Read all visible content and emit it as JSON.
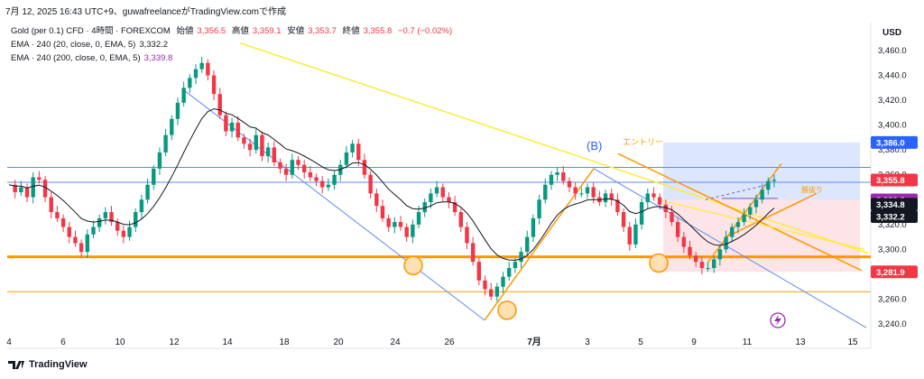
{
  "header": {
    "text": "7月 12, 2025 16:43 UTC+9、guwafreelanceがTradingView.comで作成"
  },
  "legend": {
    "symbol": "Gold (per 0.1) CFD · 4時間 · FOREXCOM",
    "o_label": "始値",
    "o": "3,356.5",
    "h_label": "高値",
    "h": "3,359.1",
    "l_label": "安値",
    "l": "3,353.7",
    "c_label": "終値",
    "c": "3,355.8",
    "chg": "−0.7 (−0.02%)",
    "ema1": "EMA · 240 (20, close, 0, EMA, 5)",
    "ema1_val": "3,332.2",
    "ema2": "EMA · 240 (200, close, 0, EMA, 5)",
    "ema2_val": "3,339.8"
  },
  "currency": "USD",
  "annotations": {
    "wave_b": "(B)",
    "entry": "エントリー",
    "tp": "勝抜り"
  },
  "footer": {
    "brand": "TradingView"
  },
  "colors": {
    "up": "#089981",
    "down": "#f23645",
    "ema20": "#131722",
    "ema200": "#9c27b0",
    "orange": "#ff9800",
    "yellow": "#ffeb3b",
    "blue": "#5b8def"
  },
  "chart_data": {
    "type": "candlestick",
    "title": "Gold (per 0.1) CFD · 4時間 · FOREXCOM",
    "x_ticks": [
      "4",
      "6",
      "10",
      "12",
      "14",
      "18",
      "20",
      "24",
      "26",
      "7月",
      "3",
      "5",
      "9",
      "11",
      "13",
      "15"
    ],
    "y_ticks": [
      "3,460.0",
      "3,440.0",
      "3,420.0",
      "3,400.0",
      "3,380.0",
      "3,360.0",
      "3,340.0",
      "3,320.0",
      "3,300.0",
      "3,280.0",
      "3,260.0",
      "3,240.0"
    ],
    "ylim": [
      3230,
      3472
    ],
    "price_badges": [
      {
        "value": 3386.0,
        "label": "3,386.0",
        "color": "#2962ff"
      },
      {
        "value": 3355.8,
        "label": "3,355.8",
        "color": "#f23645"
      },
      {
        "value": 3339.8,
        "label": "3,339.8",
        "color": "#9c27b0"
      },
      {
        "value": 3334.8,
        "label": "3,334.8",
        "color": "#131722"
      },
      {
        "value": 3332.2,
        "label": "3,332.2",
        "color": "#131722"
      },
      {
        "value": 3281.9,
        "label": "3,281.9",
        "color": "#f23645"
      }
    ],
    "close_path": [
      3352,
      3346,
      3350,
      3342,
      3358,
      3356,
      3342,
      3330,
      3325,
      3318,
      3310,
      3305,
      3298,
      3312,
      3318,
      3325,
      3330,
      3322,
      3315,
      3310,
      3318,
      3330,
      3340,
      3352,
      3365,
      3378,
      3392,
      3405,
      3418,
      3430,
      3438,
      3445,
      3450,
      3440,
      3425,
      3408,
      3395,
      3402,
      3390,
      3385,
      3380,
      3392,
      3375,
      3382,
      3370,
      3365,
      3360,
      3372,
      3368,
      3362,
      3358,
      3355,
      3350,
      3352,
      3360,
      3368,
      3378,
      3385,
      3372,
      3360,
      3345,
      3335,
      3325,
      3318,
      3322,
      3318,
      3310,
      3320,
      3330,
      3338,
      3345,
      3350,
      3342,
      3338,
      3330,
      3318,
      3305,
      3290,
      3275,
      3268,
      3262,
      3270,
      3278,
      3285,
      3290,
      3298,
      3310,
      3325,
      3340,
      3352,
      3360,
      3362,
      3355,
      3350,
      3345,
      3345,
      3350,
      3342,
      3338,
      3345,
      3340,
      3330,
      3318,
      3304,
      3320,
      3338,
      3345,
      3342,
      3336,
      3330,
      3322,
      3310,
      3302,
      3295,
      3290,
      3285,
      3285,
      3292,
      3300,
      3310,
      3318,
      3322,
      3328,
      3334,
      3340,
      3348,
      3355,
      3356
    ]
  }
}
